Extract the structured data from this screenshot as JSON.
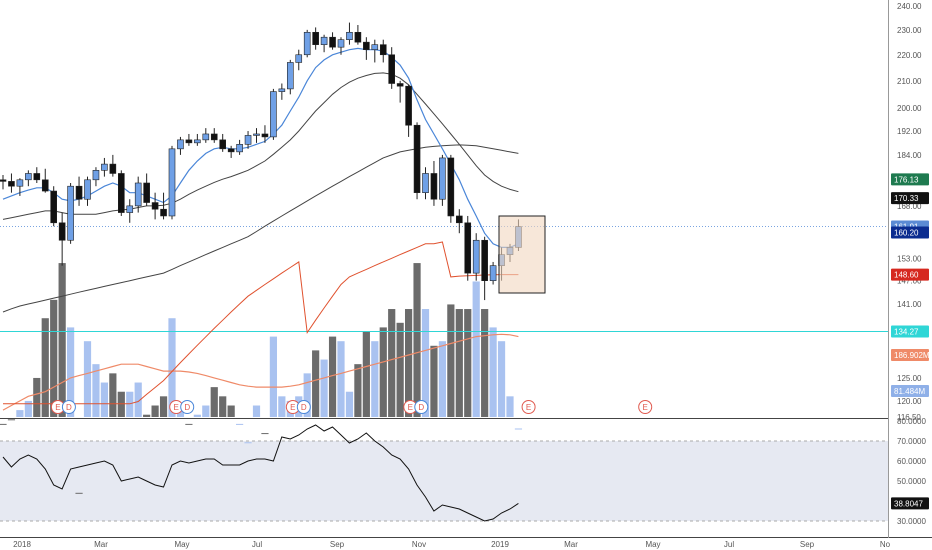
{
  "chart_data": {
    "type": "candlestick",
    "price_axis": {
      "ticks": [
        "240.00",
        "230.00",
        "220.00",
        "210.00",
        "200.00",
        "192.00",
        "184.00",
        "176.00",
        "168.00",
        "161.00",
        "153.00",
        "147.00",
        "141.00",
        "135.00",
        "130.00",
        "125.00",
        "120.00",
        "116.50"
      ],
      "values": [
        240,
        230,
        220,
        210,
        200,
        192,
        184,
        176,
        168,
        161,
        153,
        147,
        141,
        135,
        130,
        125,
        120,
        116.5
      ],
      "log_scale": true
    },
    "time_axis": {
      "labels": [
        "2018",
        "Mar",
        "May",
        "Jul",
        "Sep",
        "Nov",
        "2019",
        "Mar",
        "May",
        "Jul",
        "Sep",
        "No"
      ]
    },
    "price_badges": [
      {
        "label": "176.13",
        "value": 176.13,
        "color": "#1e7a4f"
      },
      {
        "label": "170.33",
        "value": 170.33,
        "color": "#111111"
      },
      {
        "label": "161.91",
        "value": 161.91,
        "color": "#5b8bd4"
      },
      {
        "label": "160.20",
        "value": 160.2,
        "color": "#0b2c8f"
      },
      {
        "label": "148.60",
        "value": 148.6,
        "color": "#d6281f"
      },
      {
        "label": "134.27",
        "value": 134.27,
        "color": "#2fd6d6"
      }
    ],
    "volume_badges": [
      {
        "label": "186.902M",
        "color": "#ef8a68"
      },
      {
        "label": "81.484M",
        "color": "#8fb0e8"
      }
    ],
    "horizontal_lines": [
      {
        "value": 161.91,
        "color": "#7aa4e0",
        "style": "dotted"
      },
      {
        "value": 134.27,
        "color": "#2fd6d6",
        "style": "solid"
      }
    ],
    "earnings_markers": [
      "E",
      "E",
      "E",
      "E",
      "E",
      "E"
    ],
    "dividend_markers": [
      "D",
      "D",
      "D",
      "D"
    ],
    "candles": [
      {
        "o": 176,
        "h": 177.5,
        "l": 173,
        "c": 175.5
      },
      {
        "o": 175.5,
        "h": 178,
        "l": 172,
        "c": 174
      },
      {
        "o": 174,
        "h": 176.5,
        "l": 171,
        "c": 176
      },
      {
        "o": 176,
        "h": 179,
        "l": 174,
        "c": 178
      },
      {
        "o": 178,
        "h": 180,
        "l": 175,
        "c": 176
      },
      {
        "o": 176,
        "h": 179.5,
        "l": 172,
        "c": 172.5
      },
      {
        "o": 172.5,
        "h": 174,
        "l": 162,
        "c": 163
      },
      {
        "o": 163,
        "h": 166,
        "l": 151,
        "c": 158
      },
      {
        "o": 158,
        "h": 175,
        "l": 157,
        "c": 174
      },
      {
        "o": 174,
        "h": 177,
        "l": 168,
        "c": 170
      },
      {
        "o": 170,
        "h": 177,
        "l": 168,
        "c": 176
      },
      {
        "o": 176,
        "h": 180,
        "l": 174,
        "c": 179
      },
      {
        "o": 179,
        "h": 183,
        "l": 177,
        "c": 181
      },
      {
        "o": 181,
        "h": 184,
        "l": 177,
        "c": 178
      },
      {
        "o": 178,
        "h": 179,
        "l": 165,
        "c": 166
      },
      {
        "o": 166,
        "h": 170,
        "l": 163,
        "c": 168
      },
      {
        "o": 168,
        "h": 177,
        "l": 166,
        "c": 175
      },
      {
        "o": 175,
        "h": 178,
        "l": 168,
        "c": 169
      },
      {
        "o": 169,
        "h": 172,
        "l": 164,
        "c": 167
      },
      {
        "o": 167,
        "h": 172,
        "l": 164,
        "c": 165
      },
      {
        "o": 165,
        "h": 187,
        "l": 164,
        "c": 186
      },
      {
        "o": 186,
        "h": 190,
        "l": 184,
        "c": 189
      },
      {
        "o": 189,
        "h": 191,
        "l": 187,
        "c": 188
      },
      {
        "o": 188,
        "h": 191,
        "l": 187,
        "c": 189
      },
      {
        "o": 189,
        "h": 193,
        "l": 188,
        "c": 191
      },
      {
        "o": 191,
        "h": 193,
        "l": 188,
        "c": 189
      },
      {
        "o": 189,
        "h": 191,
        "l": 185,
        "c": 186
      },
      {
        "o": 186,
        "h": 187,
        "l": 183,
        "c": 185
      },
      {
        "o": 185,
        "h": 189,
        "l": 184,
        "c": 187.5
      },
      {
        "o": 187.5,
        "h": 192,
        "l": 186,
        "c": 190.5
      },
      {
        "o": 190.5,
        "h": 193,
        "l": 188,
        "c": 191
      },
      {
        "o": 191,
        "h": 194,
        "l": 188,
        "c": 190
      },
      {
        "o": 190,
        "h": 207,
        "l": 189,
        "c": 206
      },
      {
        "o": 206,
        "h": 209,
        "l": 203,
        "c": 207
      },
      {
        "o": 207,
        "h": 218,
        "l": 205,
        "c": 217
      },
      {
        "o": 217,
        "h": 222,
        "l": 214,
        "c": 220
      },
      {
        "o": 220,
        "h": 230,
        "l": 219,
        "c": 229
      },
      {
        "o": 229,
        "h": 231,
        "l": 222,
        "c": 224
      },
      {
        "o": 224,
        "h": 228,
        "l": 221,
        "c": 227
      },
      {
        "o": 227,
        "h": 229,
        "l": 222,
        "c": 223
      },
      {
        "o": 223,
        "h": 227,
        "l": 220,
        "c": 226
      },
      {
        "o": 226,
        "h": 233,
        "l": 224,
        "c": 229
      },
      {
        "o": 229,
        "h": 232,
        "l": 224,
        "c": 225
      },
      {
        "o": 225,
        "h": 227,
        "l": 218,
        "c": 222
      },
      {
        "o": 222,
        "h": 226,
        "l": 217,
        "c": 224
      },
      {
        "o": 224,
        "h": 226,
        "l": 217,
        "c": 220
      },
      {
        "o": 220,
        "h": 223,
        "l": 207,
        "c": 209
      },
      {
        "o": 209,
        "h": 210,
        "l": 202,
        "c": 208
      },
      {
        "o": 208,
        "h": 208.5,
        "l": 190,
        "c": 194
      },
      {
        "o": 194,
        "h": 195,
        "l": 170,
        "c": 172
      },
      {
        "o": 172,
        "h": 180,
        "l": 170,
        "c": 178
      },
      {
        "o": 178,
        "h": 182,
        "l": 168,
        "c": 170
      },
      {
        "o": 170,
        "h": 184,
        "l": 168,
        "c": 183
      },
      {
        "o": 183,
        "h": 184,
        "l": 163,
        "c": 165
      },
      {
        "o": 165,
        "h": 167,
        "l": 160,
        "c": 163
      },
      {
        "o": 163,
        "h": 165,
        "l": 147,
        "c": 149
      },
      {
        "o": 149,
        "h": 160,
        "l": 147,
        "c": 158
      },
      {
        "o": 158,
        "h": 159,
        "l": 142,
        "c": 147
      },
      {
        "o": 147,
        "h": 152,
        "l": 146,
        "c": 151
      },
      {
        "o": 151,
        "h": 156,
        "l": 147,
        "c": 154
      },
      {
        "o": 154,
        "h": 157,
        "l": 152,
        "c": 156
      },
      {
        "o": 156,
        "h": 164,
        "l": 155,
        "c": 161.9
      }
    ],
    "volume": [
      115,
      116,
      118,
      120,
      125,
      138,
      142,
      150,
      136,
      100,
      133,
      128,
      124,
      126,
      122,
      122,
      124,
      117,
      119,
      121,
      138,
      118,
      115,
      117,
      119,
      123,
      121,
      119,
      115,
      111,
      119,
      113,
      134,
      121,
      120,
      121,
      126,
      131,
      129,
      134,
      133,
      122,
      128,
      135,
      133,
      136,
      140,
      137,
      140,
      150,
      140,
      132,
      133,
      141,
      140,
      140,
      146,
      140,
      136,
      133,
      121,
      114
    ],
    "ma_fast": [
      170,
      171,
      172,
      172.8,
      173.5,
      173.5,
      172,
      170,
      169.5,
      170,
      171,
      172.5,
      174,
      175,
      174,
      172,
      172,
      171,
      170,
      169,
      171,
      175,
      179,
      182,
      184.5,
      186,
      186.5,
      186,
      186,
      186.5,
      187.5,
      188.5,
      191,
      194,
      199,
      204,
      210,
      215,
      218,
      220,
      221,
      222,
      222.5,
      222,
      222,
      221.5,
      219,
      216,
      211,
      203,
      196,
      191,
      186,
      181,
      176,
      170,
      165,
      160,
      157,
      156,
      156,
      157
    ],
    "ma_mid": [
      164,
      164.5,
      165,
      165.5,
      166,
      166.5,
      166.5,
      166,
      165.5,
      165.5,
      165.5,
      165.5,
      166,
      166.5,
      166.8,
      167,
      167.5,
      168,
      168,
      168.2,
      168.8,
      170,
      171.5,
      172.8,
      174,
      175.2,
      176.2,
      177,
      178,
      179,
      180.5,
      182,
      184.2,
      186.5,
      189,
      192,
      195.5,
      199,
      202,
      205,
      207.5,
      209.5,
      211,
      212,
      212.8,
      213,
      212.5,
      211,
      208.5,
      205,
      201.5,
      198,
      194.5,
      191,
      187.5,
      184,
      180.5,
      177.5,
      175.5,
      174,
      173,
      172.3
    ],
    "ma_slow": [
      139,
      139.8,
      140.5,
      141,
      141.5,
      142,
      142.5,
      143,
      143.5,
      144,
      144.5,
      145,
      145.5,
      146,
      146.5,
      147,
      147.5,
      148,
      148.5,
      149,
      150,
      151,
      152,
      153,
      154,
      155,
      156,
      157,
      158,
      159,
      160.5,
      162,
      163.5,
      165,
      166.5,
      168,
      169.5,
      171,
      172.5,
      174,
      175.5,
      177,
      178.5,
      180,
      181.5,
      183,
      184,
      185,
      185.5,
      186,
      186.5,
      186.8,
      187,
      187.2,
      187.3,
      187.2,
      187,
      186.5,
      186,
      185.5,
      185,
      184.5
    ],
    "ma_red": [
      90,
      92,
      94,
      96,
      98,
      100,
      102,
      104,
      105.5,
      107,
      108.5,
      110,
      112,
      114,
      115.5,
      117,
      118.5,
      120,
      121.5,
      123,
      125,
      127,
      129,
      131,
      133,
      135,
      137,
      139,
      141,
      143,
      144.5,
      146,
      147.5,
      149,
      150.5,
      152,
      134,
      137,
      140,
      143,
      146,
      148,
      149,
      150,
      151,
      152,
      153,
      154,
      155,
      156,
      157,
      157,
      157.5,
      148,
      148.2,
      148.3,
      148.4,
      148.5,
      148.55,
      148.6,
      148.6,
      148.6
    ],
    "volume_ma": [
      118,
      119,
      120,
      121,
      121.5,
      122,
      123,
      124,
      125,
      125.5,
      126,
      126.5,
      127,
      127.5,
      128,
      128,
      128,
      127.5,
      127,
      126.5,
      126.5,
      126.5,
      126.3,
      126,
      125.5,
      125,
      124.5,
      124,
      123.5,
      123.2,
      123,
      123,
      123,
      123,
      123.2,
      123.5,
      124,
      124.5,
      125,
      125.5,
      126,
      126.5,
      127,
      127.5,
      128,
      128.5,
      129,
      129.5,
      130,
      130.5,
      131,
      131.5,
      132,
      132.5,
      133,
      133.5,
      134,
      134.2,
      134.4,
      134.5,
      134.4,
      134
    ],
    "rsi_axis": {
      "ticks": [
        "80.0000",
        "70.0000",
        "60.0000",
        "50.0000",
        "40.0000",
        "30.0000"
      ],
      "values": [
        80,
        70,
        60,
        50,
        40,
        30
      ],
      "band": [
        30,
        70
      ]
    },
    "rsi_badge": {
      "label": "38.8047",
      "value": 38.8047
    },
    "rsi": [
      62,
      57,
      61,
      63,
      61,
      56,
      48,
      46,
      56,
      57,
      58,
      59,
      60,
      58,
      50,
      51,
      52,
      50,
      48,
      47,
      58,
      60,
      59,
      60,
      61,
      61,
      58,
      58,
      58,
      60,
      61,
      61,
      60,
      72,
      71,
      73,
      76,
      78,
      75,
      77,
      73,
      69,
      71,
      74,
      70,
      67,
      63,
      61,
      56,
      48,
      42,
      35,
      38,
      37,
      36,
      34,
      32,
      30,
      31,
      34,
      36,
      38.8
    ]
  }
}
